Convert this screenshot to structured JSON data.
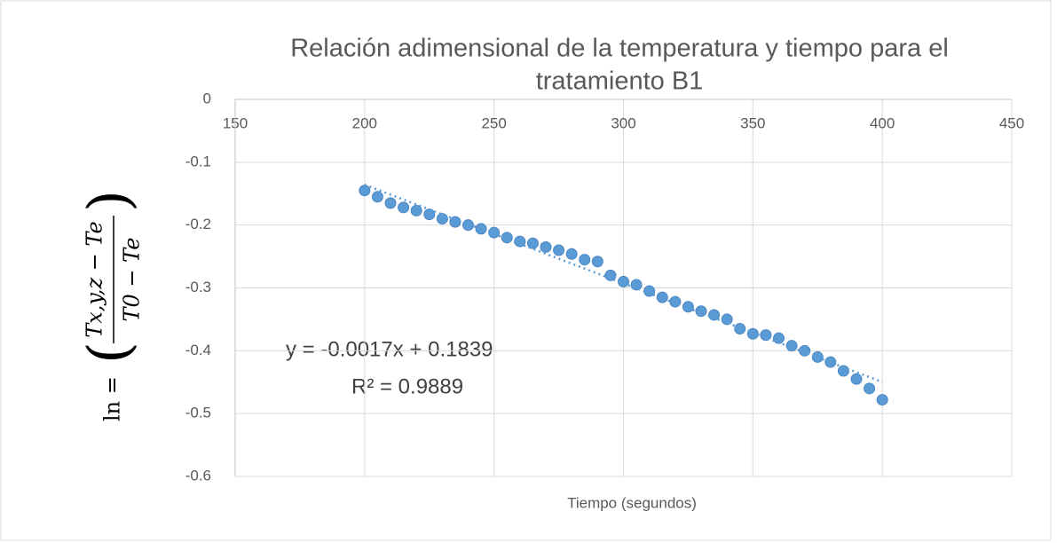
{
  "chart_data": {
    "type": "scatter",
    "title": [
      "Relación adimensional de la temperatura y tiempo para el",
      "tratamiento B1"
    ],
    "xlabel": "Tiempo (segundos)",
    "ylabel": {
      "prefix": "ln =",
      "numerator": "Tx,y,z − Te",
      "denominator": "T0 − Te"
    },
    "annotations": [
      "y = -0.0017x + 0.1839",
      "R² = 0.9889"
    ],
    "color": "#5b9bd5",
    "xlim": [
      150,
      450
    ],
    "xticks": [
      150,
      200,
      250,
      300,
      350,
      400,
      450
    ],
    "ylim": [
      -0.6,
      0
    ],
    "yticks": [
      0,
      -0.1,
      -0.2,
      -0.3,
      -0.4,
      -0.5,
      -0.6
    ],
    "grid": true,
    "trendline": true,
    "x": [
      200,
      205,
      210,
      215,
      220,
      225,
      230,
      235,
      240,
      245,
      250,
      255,
      260,
      265,
      270,
      275,
      280,
      285,
      290,
      295,
      300,
      305,
      310,
      315,
      320,
      325,
      330,
      335,
      340,
      345,
      350,
      355,
      360,
      365,
      370,
      375,
      380,
      385,
      390,
      395,
      400
    ],
    "values": [
      -0.145,
      -0.155,
      -0.165,
      -0.172,
      -0.177,
      -0.183,
      -0.19,
      -0.195,
      -0.2,
      -0.206,
      -0.212,
      -0.22,
      -0.226,
      -0.229,
      -0.235,
      -0.24,
      -0.246,
      -0.255,
      -0.258,
      -0.28,
      -0.29,
      -0.295,
      -0.305,
      -0.315,
      -0.322,
      -0.33,
      -0.337,
      -0.343,
      -0.35,
      -0.365,
      -0.373,
      -0.375,
      -0.38,
      -0.392,
      -0.4,
      -0.41,
      -0.418,
      -0.432,
      -0.445,
      -0.46,
      -0.478
    ]
  }
}
